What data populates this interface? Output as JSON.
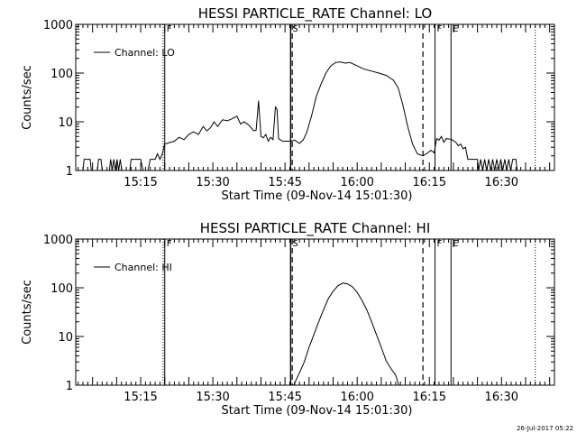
{
  "footer": {
    "timestamp": "26-Jul-2017 05:22"
  },
  "chart_data": [
    {
      "type": "line",
      "title": "HESSI PARTICLE_RATE Channel: LO",
      "xlabel": "Start Time (09-Nov-14 15:01:30)",
      "ylabel": "Counts/sec",
      "xlim": [
        "15:01:30",
        "16:41"
      ],
      "ylim": [
        1,
        1000
      ],
      "yscale": "log",
      "xticks": [
        "15:15",
        "15:30",
        "15:45",
        "16:00",
        "16:15",
        "16:30"
      ],
      "yticks": [
        "1",
        "10",
        "100",
        "1000"
      ],
      "legend": {
        "label": "Channel: LO",
        "placement": "top-left"
      },
      "markers": [
        {
          "label": "F",
          "time": "15:20:00",
          "style": "solid"
        },
        {
          "label": "S",
          "time": "15:46:10",
          "style": "solid"
        },
        {
          "label": "",
          "time": "15:46:30",
          "style": "dashed"
        },
        {
          "label": "",
          "time": "16:13:40",
          "style": "dashed"
        },
        {
          "label": "F",
          "time": "16:16:10",
          "style": "solid"
        },
        {
          "label": "E",
          "time": "16:19:30",
          "style": "solid"
        },
        {
          "label": "",
          "time": "15:19:40",
          "style": "dotted"
        },
        {
          "label": "",
          "time": "16:37:00",
          "style": "dotted"
        }
      ],
      "series": [
        {
          "name": "Channel: LO",
          "points": [
            [
              "15:01:30",
              1
            ],
            [
              "15:03:00",
              1
            ],
            [
              "15:03:15",
              1.7
            ],
            [
              "15:04:30",
              1.7
            ],
            [
              "15:04:45",
              1
            ],
            [
              "15:06:00",
              1
            ],
            [
              "15:06:15",
              1.7
            ],
            [
              "15:06:45",
              1.7
            ],
            [
              "15:07:00",
              1
            ],
            [
              "15:08:30",
              1
            ],
            [
              "15:08:45",
              1.7
            ],
            [
              "15:09:05",
              1
            ],
            [
              "15:09:25",
              1.7
            ],
            [
              "15:09:45",
              1
            ],
            [
              "15:10:05",
              1.7
            ],
            [
              "15:10:25",
              1
            ],
            [
              "15:10:45",
              1.7
            ],
            [
              "15:11:05",
              1
            ],
            [
              "15:12:45",
              1
            ],
            [
              "15:13:00",
              1.7
            ],
            [
              "15:14:30",
              1.7
            ],
            [
              "15:15:00",
              1.7
            ],
            [
              "15:15:30",
              1
            ],
            [
              "15:16:30",
              1
            ],
            [
              "15:17:00",
              1.7
            ],
            [
              "15:18:00",
              1.7
            ],
            [
              "15:18:30",
              2.2
            ],
            [
              "15:19:00",
              1.7
            ],
            [
              "15:19:30",
              2.2
            ],
            [
              "15:20:00",
              3.5
            ],
            [
              "15:22:00",
              4
            ],
            [
              "15:23:00",
              4.8
            ],
            [
              "15:24:00",
              4.3
            ],
            [
              "15:25:00",
              5.5
            ],
            [
              "15:26:00",
              6.2
            ],
            [
              "15:27:00",
              5.5
            ],
            [
              "15:28:00",
              8
            ],
            [
              "15:28:45",
              6.5
            ],
            [
              "15:29:30",
              7.5
            ],
            [
              "15:30:15",
              10
            ],
            [
              "15:31:00",
              8
            ],
            [
              "15:32:00",
              11
            ],
            [
              "15:33:00",
              10.5
            ],
            [
              "15:34:00",
              11.5
            ],
            [
              "15:35:00",
              13
            ],
            [
              "15:35:45",
              9
            ],
            [
              "15:36:30",
              10
            ],
            [
              "15:37:30",
              8.5
            ],
            [
              "15:38:30",
              6.5
            ],
            [
              "15:39:00",
              6.7
            ],
            [
              "15:39:30",
              27
            ],
            [
              "15:40:00",
              5
            ],
            [
              "15:40:30",
              4.7
            ],
            [
              "15:41:00",
              5.5
            ],
            [
              "15:41:30",
              4
            ],
            [
              "15:42:00",
              4.8
            ],
            [
              "15:42:30",
              4.3
            ],
            [
              "15:43:00",
              20
            ],
            [
              "15:43:20",
              18
            ],
            [
              "15:43:40",
              4.5
            ],
            [
              "15:44:30",
              4
            ],
            [
              "15:46:10",
              4
            ],
            [
              "15:47:00",
              4.2
            ],
            [
              "15:48:00",
              3.6
            ],
            [
              "15:48:45",
              4.2
            ],
            [
              "15:49:30",
              6
            ],
            [
              "15:50:30",
              13
            ],
            [
              "15:51:30",
              33
            ],
            [
              "15:52:30",
              60
            ],
            [
              "15:53:30",
              100
            ],
            [
              "15:54:30",
              140
            ],
            [
              "15:55:30",
              165
            ],
            [
              "15:56:30",
              170
            ],
            [
              "15:57:30",
              160
            ],
            [
              "15:58:30",
              165
            ],
            [
              "16:00:00",
              140
            ],
            [
              "16:01:30",
              120
            ],
            [
              "16:03:00",
              110
            ],
            [
              "16:04:30",
              100
            ],
            [
              "16:06:00",
              90
            ],
            [
              "16:07:30",
              72
            ],
            [
              "16:08:30",
              50
            ],
            [
              "16:09:30",
              22
            ],
            [
              "16:10:30",
              8
            ],
            [
              "16:11:30",
              3.5
            ],
            [
              "16:12:30",
              2.2
            ],
            [
              "16:13:40",
              2
            ],
            [
              "16:14:40",
              2.3
            ],
            [
              "16:15:20",
              2.6
            ],
            [
              "16:16:00",
              2.3
            ],
            [
              "16:16:30",
              4.5
            ],
            [
              "16:17:00",
              4.2
            ],
            [
              "16:17:30",
              5
            ],
            [
              "16:18:00",
              3.8
            ],
            [
              "16:18:30",
              4.5
            ],
            [
              "16:19:30",
              4.4
            ],
            [
              "16:20:30",
              3.8
            ],
            [
              "16:21:00",
              3.2
            ],
            [
              "16:21:30",
              3.5
            ],
            [
              "16:22:00",
              2.8
            ],
            [
              "16:22:30",
              3
            ],
            [
              "16:23:00",
              1.7
            ],
            [
              "16:25:00",
              1.7
            ],
            [
              "16:25:15",
              1
            ],
            [
              "16:25:40",
              1.7
            ],
            [
              "16:26:05",
              1
            ],
            [
              "16:26:30",
              1.7
            ],
            [
              "16:26:55",
              1
            ],
            [
              "16:27:20",
              1.7
            ],
            [
              "16:27:45",
              1
            ],
            [
              "16:28:10",
              1.7
            ],
            [
              "16:28:35",
              1
            ],
            [
              "16:29:00",
              1.7
            ],
            [
              "16:29:25",
              1
            ],
            [
              "16:29:50",
              1.7
            ],
            [
              "16:30:15",
              1
            ],
            [
              "16:30:40",
              1.7
            ],
            [
              "16:31:05",
              1
            ],
            [
              "16:31:30",
              1.7
            ],
            [
              "16:31:55",
              1
            ],
            [
              "16:32:20",
              1.7
            ],
            [
              "16:33:00",
              1.7
            ],
            [
              "16:33:15",
              1
            ],
            [
              "16:34:00",
              1
            ]
          ]
        }
      ]
    },
    {
      "type": "line",
      "title": "HESSI PARTICLE_RATE Channel: HI",
      "xlabel": "Start Time (09-Nov-14 15:01:30)",
      "ylabel": "Counts/sec",
      "xlim": [
        "15:01:30",
        "16:41"
      ],
      "ylim": [
        1,
        1000
      ],
      "yscale": "log",
      "xticks": [
        "15:15",
        "15:30",
        "15:45",
        "16:00",
        "16:15",
        "16:30"
      ],
      "yticks": [
        "1",
        "10",
        "100",
        "1000"
      ],
      "legend": {
        "label": "Channel: HI",
        "placement": "top-left"
      },
      "markers": [
        {
          "label": "F",
          "time": "15:20:00",
          "style": "solid"
        },
        {
          "label": "S",
          "time": "15:46:10",
          "style": "solid"
        },
        {
          "label": "",
          "time": "15:46:30",
          "style": "dashed"
        },
        {
          "label": "",
          "time": "16:13:40",
          "style": "dashed"
        },
        {
          "label": "F",
          "time": "16:16:10",
          "style": "solid"
        },
        {
          "label": "E",
          "time": "16:19:30",
          "style": "solid"
        },
        {
          "label": "",
          "time": "15:19:40",
          "style": "dotted"
        },
        {
          "label": "",
          "time": "16:37:00",
          "style": "dotted"
        }
      ],
      "series": [
        {
          "name": "Channel: HI",
          "points": [
            [
              "15:46:50",
              1
            ],
            [
              "15:47:20",
              1.3
            ],
            [
              "15:48:00",
              1.8
            ],
            [
              "15:49:00",
              3
            ],
            [
              "15:50:00",
              6
            ],
            [
              "15:51:00",
              11
            ],
            [
              "15:52:00",
              20
            ],
            [
              "15:53:00",
              35
            ],
            [
              "15:54:00",
              60
            ],
            [
              "15:55:00",
              85
            ],
            [
              "15:56:00",
              110
            ],
            [
              "15:57:00",
              125
            ],
            [
              "15:58:00",
              120
            ],
            [
              "15:59:00",
              105
            ],
            [
              "16:00:00",
              80
            ],
            [
              "16:01:00",
              55
            ],
            [
              "16:02:00",
              35
            ],
            [
              "16:03:00",
              20
            ],
            [
              "16:04:00",
              11
            ],
            [
              "16:05:00",
              6
            ],
            [
              "16:06:00",
              3.2
            ],
            [
              "16:07:00",
              2.2
            ],
            [
              "16:08:00",
              1.6
            ],
            [
              "16:08:40",
              1
            ]
          ]
        }
      ]
    }
  ]
}
